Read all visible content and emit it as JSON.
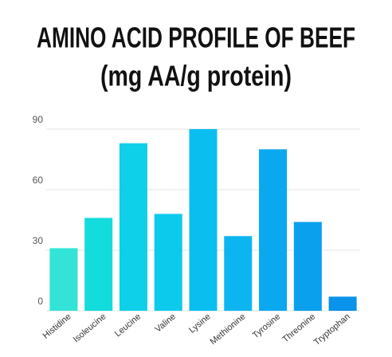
{
  "chart_data": {
    "type": "bar",
    "title": "AMINO ACID PROFILE OF BEEF",
    "subtitle": "(mg AA/g protein)",
    "categories": [
      "Histidine",
      "Isoleucine",
      "Leucine",
      "Valine",
      "Lysine",
      "Methionine",
      "Tyrosine",
      "Threonine",
      "Tryptophan"
    ],
    "values": [
      31,
      46,
      83,
      48,
      90,
      37,
      80,
      44,
      7
    ],
    "colors": [
      "#33e3d6",
      "#13dcdc",
      "#0fd0e9",
      "#0ccaec",
      "#0bbef0",
      "#0db5f0",
      "#0aa8ef",
      "#0aa0ed",
      "#0a93ea"
    ],
    "ylim": [
      0,
      90
    ],
    "yticks": [
      0,
      30,
      60,
      90
    ],
    "grid": true
  }
}
